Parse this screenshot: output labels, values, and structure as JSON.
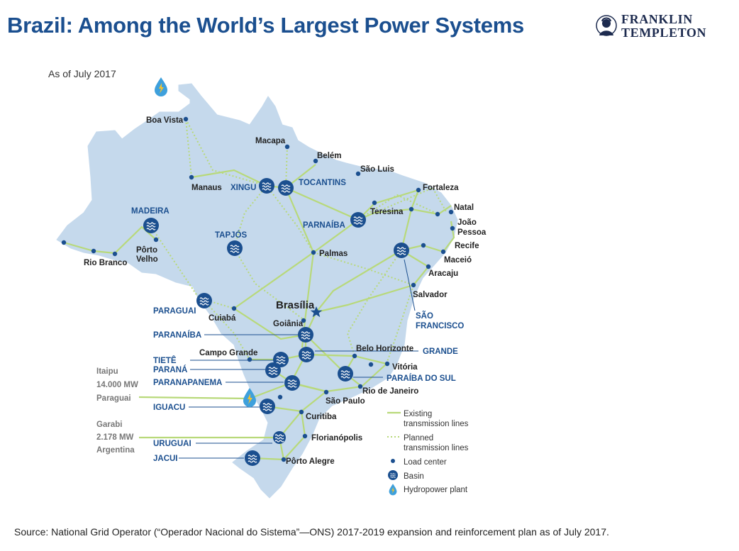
{
  "title": "Brazil: Among the World’s Largest Power Systems",
  "as_of": "As of July 2017",
  "source": "Source: National Grid Operator (“Operador Nacional do Sistema”—ONS) 2017-2019 expansion and reinforcement plan as of July 2017.",
  "logo": {
    "line1": "FRANKLIN",
    "line2": "TEMPLETON"
  },
  "colors": {
    "map_fill": "#c5d9ec",
    "basin": "#1b4f8f",
    "lines": "#b8d97a",
    "title": "#1b4f8f"
  },
  "cities": {
    "boa_vista": "Boa Vista",
    "macapa": "Macapa",
    "belem": "Belém",
    "sao_luis": "São Luis",
    "manaus": "Manaus",
    "fortaleza": "Fortaleza",
    "teresina": "Teresina",
    "natal": "Natal",
    "joao_pessoa_1": "João",
    "joao_pessoa_2": "Pessoa",
    "recife": "Recife",
    "maceio": "Maceió",
    "aracaju": "Aracaju",
    "salvador": "Salvador",
    "palmas": "Palmas",
    "porto_velho_1": "Pôrto",
    "porto_velho_2": "Velho",
    "rio_branco": "Rio Branco",
    "brasilia": "Brasília",
    "cuiaba": "Cuiabá",
    "goiania": "Goiânia",
    "campo_grande": "Campo Grande",
    "belo_horizonte": "Belo Horizonte",
    "vitoria": "Vitória",
    "rio_de_janeiro": "Rio de Janeiro",
    "sao_paulo": "São Paulo",
    "curitiba": "Curitiba",
    "florianopolis": "Florianópolis",
    "porto_alegre": "Pôrto Alegre"
  },
  "basins": {
    "madeira": "MADEIRA",
    "xingu": "XINGU",
    "tocantins": "TOCANTINS",
    "tapajos": "TAPJÓS",
    "parnaiba": "PARNAÍBA",
    "sao_francisco_1": "SÃO",
    "sao_francisco_2": "FRANCISCO",
    "paraguai": "PARAGUAI",
    "paranaiba": "PARANAÍBA",
    "grande": "GRANDE",
    "tiete": "TIETÊ",
    "parana": "PARANÁ",
    "paranapanema": "PARANAPANEMA",
    "paraiba_do_sul": "PARAÍBA DO SUL",
    "iguacu": "IGUACU",
    "uruguai": "URUGUAI",
    "jacui": "JACUI"
  },
  "external": {
    "itaipu_1": "Itaipu",
    "itaipu_2": "14.000 MW",
    "itaipu_3": "Paraguai",
    "garabi_1": "Garabi",
    "garabi_2": "2.178 MW",
    "garabi_3": "Argentina"
  },
  "legend": {
    "existing_1": "Existing",
    "existing_2": "transmission lines",
    "planned_1": "Planned",
    "planned_2": "transmission lines",
    "load_center": "Load center",
    "basin": "Basin",
    "hydro": "Hydropower plant"
  }
}
